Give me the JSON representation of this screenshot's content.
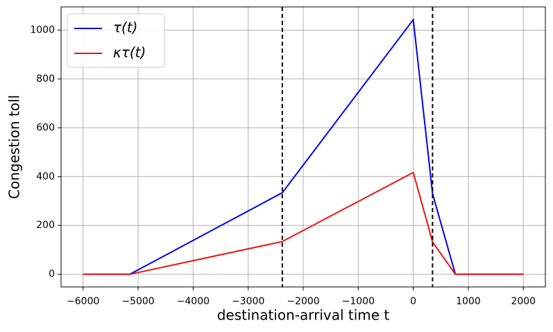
{
  "chart_data": {
    "type": "line",
    "xlabel": "destination-arrival time t",
    "ylabel": "Congestion toll",
    "x": [
      -6000,
      -5150,
      -2380,
      0,
      350,
      765,
      2000
    ],
    "series": [
      {
        "name": "τ(t)",
        "color": "#0000ee",
        "values": [
          0,
          0,
          334,
          1043,
          330,
          0,
          0
        ]
      },
      {
        "name": "κτ(t)",
        "color": "#ee1111",
        "values": [
          0,
          0,
          134,
          417,
          132,
          0,
          0
        ]
      }
    ],
    "vlines": [
      -2380,
      350
    ],
    "xlim": [
      -6400,
      2400
    ],
    "ylim": [
      -52,
      1095
    ],
    "xticks": [
      {
        "value": -6000,
        "label": "−6000"
      },
      {
        "value": -5000,
        "label": "−5000"
      },
      {
        "value": -4000,
        "label": "−4000"
      },
      {
        "value": -3000,
        "label": "−3000"
      },
      {
        "value": -2000,
        "label": "−2000"
      },
      {
        "value": -1000,
        "label": "−1000"
      },
      0,
      1000,
      2000
    ],
    "yticks": [
      0,
      200,
      400,
      600,
      800,
      1000
    ],
    "grid": true,
    "legend": "upper left"
  }
}
